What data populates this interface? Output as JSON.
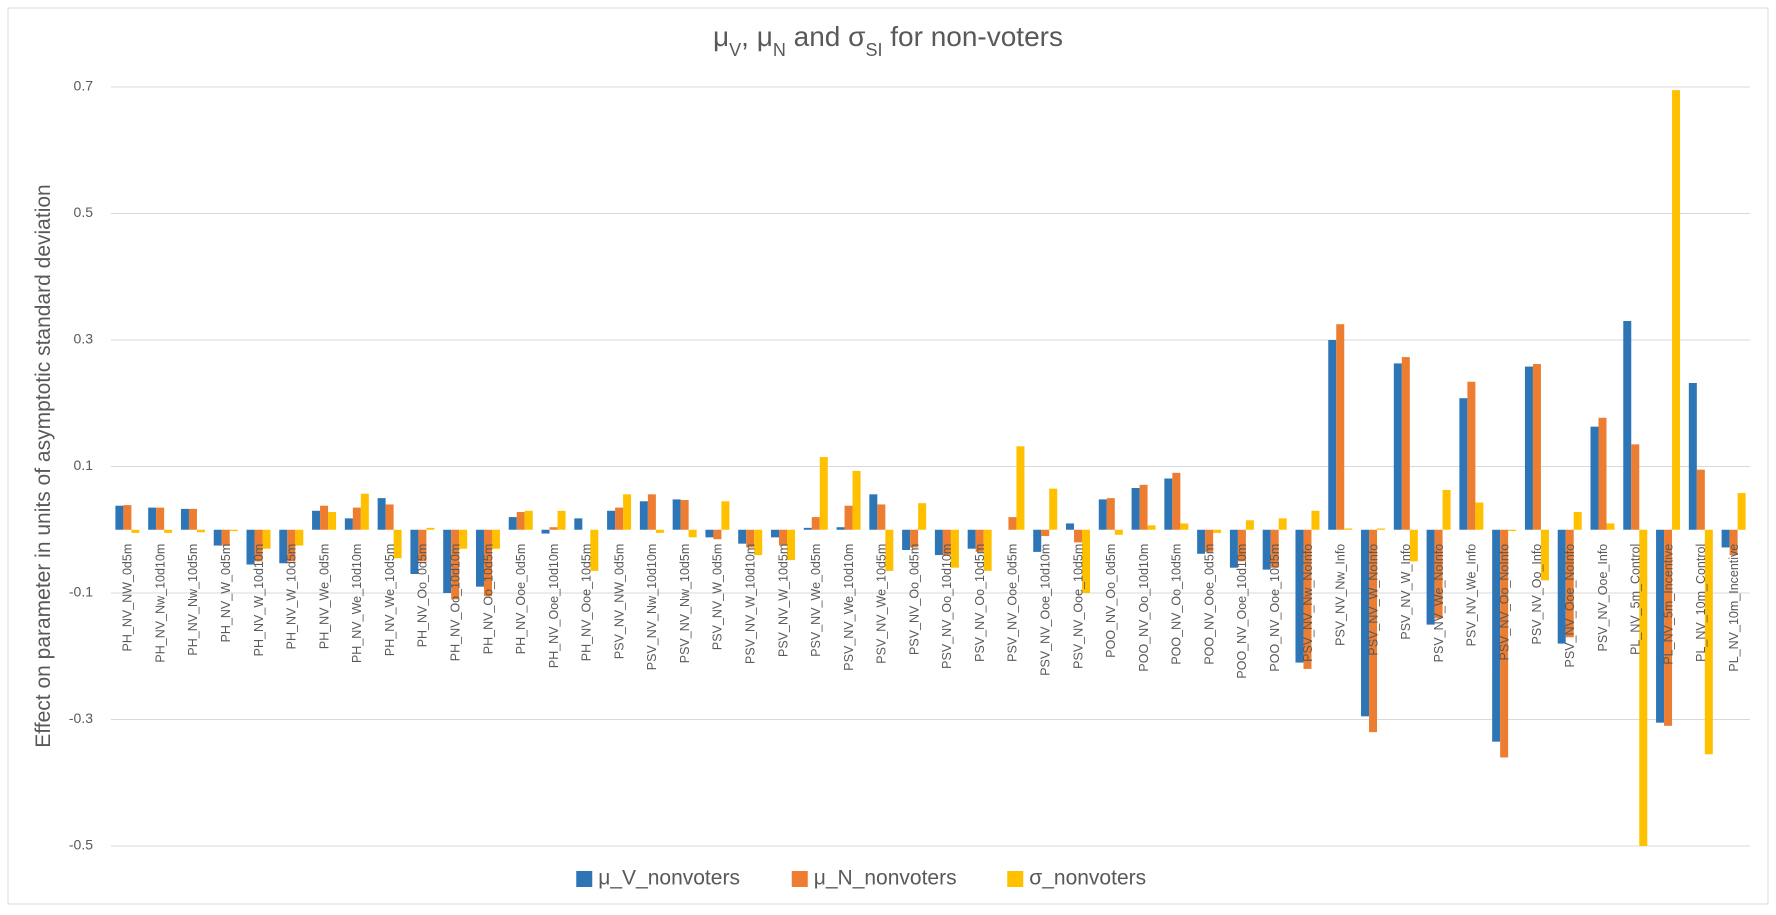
{
  "chart_data": {
    "type": "bar",
    "title": [
      {
        "text": "μ"
      },
      {
        "text": "V",
        "sub": true
      },
      {
        "text": ", μ"
      },
      {
        "text": "N",
        "sub": true
      },
      {
        "text": " and σ"
      },
      {
        "text": "SI",
        "sub": true
      },
      {
        "text": " for non-voters"
      }
    ],
    "y_label": "Effect on parameter in units of asymptotic standard deviation",
    "categories": [
      "PH_NV_NW_0d5m",
      "PH_NV_Nw_10d10m",
      "PH_NV_Nw_10d5m",
      "PH_NV_W_0d5m",
      "PH_NV_W_10d10m",
      "PH_NV_W_10d5m",
      "PH_NV_We_0d5m",
      "PH_NV_We_10d10m",
      "PH_NV_We_10d5m",
      "PH_NV_Oo_0d5m",
      "PH_NV_Oo_10d10m",
      "PH_NV_Oo_10d5m",
      "PH_NV_Ooe_0d5m",
      "PH_NV_Ooe_10d10m",
      "PH_NV_Ooe_10d5m",
      "PSV_NV_NW_0d5m",
      "PSV_NV_Nw_10d10m",
      "PSV_NV_Nw_10d5m",
      "PSV_NV_W_0d5m",
      "PSV_NV_W_10d10m",
      "PSV_NV_W_10d5m",
      "PSV_NV_We_0d5m",
      "PSV_NV_We_10d10m",
      "PSV_NV_We_10d5m",
      "PSV_NV_Oo_0d5m",
      "PSV_NV_Oo_10d10m",
      "PSV_NV_Oo_10d5m",
      "PSV_NV_Ooe_0d5m",
      "PSV_NV_Ooe_10d10m",
      "PSV_NV_Ooe_10d5m",
      "POO_NV_Oo_0d5m",
      "POO_NV_Oo_10d10m",
      "POO_NV_Oo_10d5m",
      "POO_NV_Ooe_0d5m",
      "POO_NV_Ooe_10d10m",
      "POO_NV_Ooe_10d5m",
      "PSV_NV_Nw_NoInfo",
      "PSV_NV_Nw_Info",
      "PSV_NV_W_NoInfo",
      "PSV_NV_W_Info",
      "PSV_NV_We_NoInfo",
      "PSV_NV_We_Info",
      "PSV_NV_Oo_NoInfo",
      "PSV_NV_Oo_Info",
      "PSV_NV_Ooe_NoInfo",
      "PSV_NV_Ooe_Info",
      "PL_NV_5m_Control",
      "PL_NV_5m_Incentive",
      "PL_NV_10m_Control",
      "PL_NV_10m_Incentive"
    ],
    "series": [
      {
        "name": "μ_V_nonvoters",
        "color": "#2e75b6",
        "values": [
          0.038,
          0.035,
          0.033,
          -0.025,
          -0.055,
          -0.053,
          0.03,
          0.018,
          0.05,
          -0.07,
          -0.1,
          -0.09,
          0.02,
          -0.006,
          0.018,
          0.03,
          0.045,
          0.048,
          -0.012,
          -0.022,
          -0.012,
          0.003,
          0.004,
          0.056,
          -0.032,
          -0.04,
          -0.03,
          0.0,
          -0.035,
          0.01,
          0.048,
          0.066,
          0.081,
          -0.038,
          -0.06,
          -0.063,
          -0.21,
          0.3,
          -0.295,
          0.263,
          -0.15,
          0.208,
          -0.335,
          0.258,
          -0.18,
          0.163,
          0.33,
          -0.305,
          0.232,
          -0.028
        ]
      },
      {
        "name": "μ_N_nonvoters",
        "color": "#ed7d31",
        "values": [
          0.039,
          0.035,
          0.033,
          -0.025,
          -0.05,
          -0.05,
          0.038,
          0.035,
          0.04,
          -0.05,
          -0.11,
          -0.105,
          0.028,
          0.004,
          0.0,
          0.035,
          0.056,
          0.047,
          -0.015,
          -0.028,
          -0.025,
          0.02,
          0.038,
          0.04,
          -0.028,
          -0.04,
          -0.035,
          0.02,
          -0.01,
          -0.02,
          0.05,
          0.071,
          0.09,
          -0.035,
          -0.05,
          -0.06,
          -0.22,
          0.325,
          -0.32,
          0.273,
          -0.14,
          0.234,
          -0.36,
          0.262,
          -0.17,
          0.177,
          0.135,
          -0.31,
          0.095,
          -0.04
        ]
      },
      {
        "name": "σ_nonvoters",
        "color": "#ffc000",
        "values": [
          -0.005,
          -0.005,
          -0.004,
          -0.002,
          -0.03,
          -0.025,
          0.028,
          0.057,
          -0.045,
          0.003,
          -0.03,
          -0.03,
          0.03,
          0.03,
          -0.065,
          0.056,
          -0.005,
          -0.012,
          0.045,
          -0.04,
          -0.048,
          0.115,
          0.093,
          -0.065,
          0.042,
          -0.06,
          -0.065,
          0.132,
          0.065,
          -0.1,
          -0.008,
          0.007,
          0.01,
          -0.005,
          0.015,
          0.018,
          0.03,
          0.002,
          0.002,
          -0.05,
          0.063,
          0.043,
          -0.002,
          -0.08,
          0.028,
          0.01,
          -0.5,
          0.695,
          -0.355,
          0.058
        ]
      }
    ],
    "ylim": [
      -0.5,
      0.7
    ],
    "yticks": [
      -0.5,
      -0.3,
      -0.1,
      0.1,
      0.3,
      0.5,
      0.7
    ],
    "grid": true,
    "legend": "bottom"
  }
}
